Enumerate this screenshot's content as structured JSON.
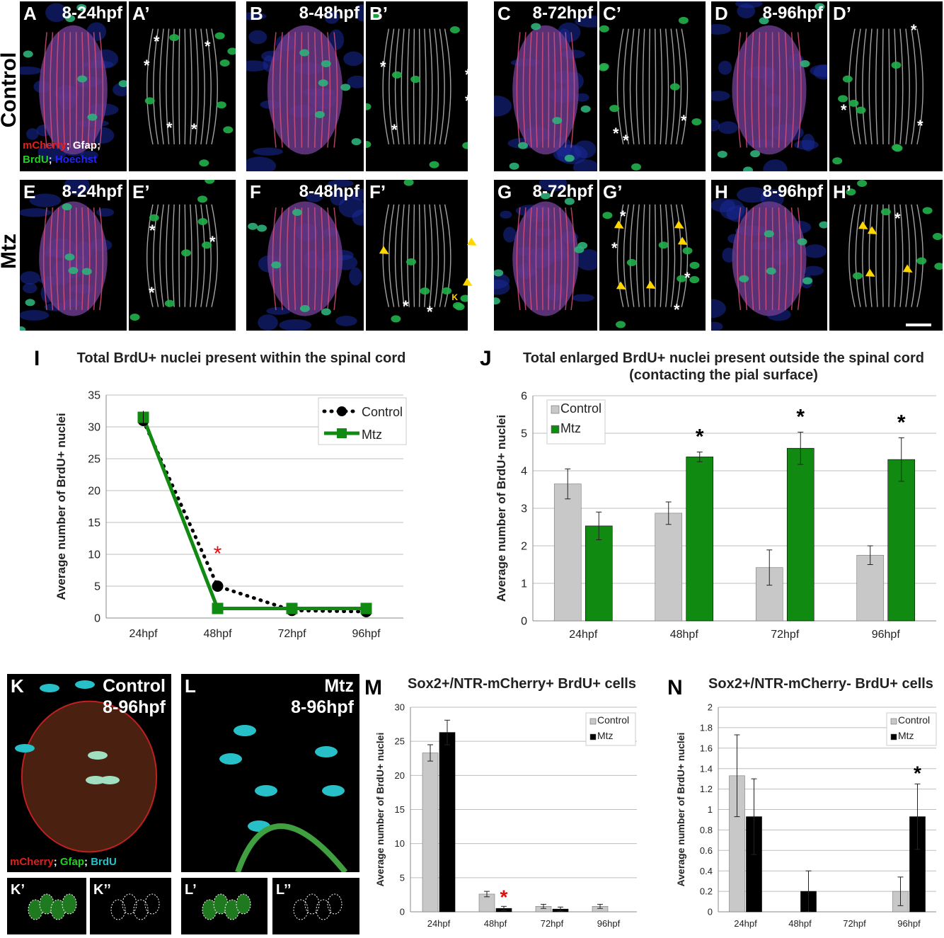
{
  "row_labels": {
    "control": "Control",
    "mtz": "Mtz"
  },
  "top_panels": [
    {
      "label": "A",
      "time": "8-24hpf"
    },
    {
      "label": "A’",
      "time": ""
    },
    {
      "label": "B",
      "time": "8-48hpf"
    },
    {
      "label": "B’",
      "time": ""
    },
    {
      "label": "C",
      "time": "8-72hpf"
    },
    {
      "label": "C’",
      "time": ""
    },
    {
      "label": "D",
      "time": "8-96hpf"
    },
    {
      "label": "D’",
      "time": ""
    }
  ],
  "mid_panels": [
    {
      "label": "E",
      "time": "8-24hpf"
    },
    {
      "label": "E’",
      "time": ""
    },
    {
      "label": "F",
      "time": "8-48hpf"
    },
    {
      "label": "F’",
      "time": "",
      "inset": "K"
    },
    {
      "label": "G",
      "time": "8-72hpf"
    },
    {
      "label": "G’",
      "time": ""
    },
    {
      "label": "H",
      "time": "8-96hpf"
    },
    {
      "label": "H’",
      "time": ""
    }
  ],
  "stain_legend_A": {
    "mcherry": "mCherry",
    "sep1": "; ",
    "gfap": "Gfap;",
    "brdu": "BrdU",
    "sep2": "; ",
    "hoechst": "Hoechst"
  },
  "stain_legend_K": {
    "mcherry": "mCherry",
    "sep1": "; ",
    "gfap": "Gfap",
    "sep2": "; ",
    "brdu": "BrdU"
  },
  "bottom_panels": {
    "K": {
      "label": "K",
      "title1": "Control",
      "title2": "8-96hpf"
    },
    "L": {
      "label": "L",
      "title1": "Mtz",
      "title2": "8-96hpf"
    },
    "K1": {
      "label": "K’"
    },
    "K2": {
      "label": "K’’"
    },
    "L1": {
      "label": "L’"
    },
    "L2": {
      "label": "L’’"
    }
  },
  "colors": {
    "control_gray": "#c8c8c8",
    "mtz_green": "#118a11",
    "black": "#000000",
    "sig_red": "#e01010"
  },
  "chart_data": [
    {
      "id": "I",
      "type": "line",
      "title": "Total BrdU+ nuclei present within the spinal cord",
      "ylabel": "Average number of BrdU+ nuclei",
      "categories": [
        "24hpf",
        "48hpf",
        "72hpf",
        "96hpf"
      ],
      "ylim": [
        0,
        35
      ],
      "yticks": [
        0,
        5,
        10,
        15,
        20,
        25,
        30,
        35
      ],
      "series": [
        {
          "name": "Control",
          "values": [
            31,
            5,
            1.2,
            1
          ],
          "errors": [
            1,
            0,
            0,
            0
          ]
        },
        {
          "name": "Mtz",
          "values": [
            31.5,
            1.5,
            1.5,
            1.5
          ],
          "errors": [
            1,
            0,
            0,
            0
          ]
        }
      ],
      "significance": [
        {
          "category": "48hpf",
          "mark": "*",
          "color": "#e01010"
        }
      ],
      "legend": "top-right",
      "grid": true
    },
    {
      "id": "J",
      "type": "bar",
      "title": "Total enlarged BrdU+ nuclei present outside the spinal cord",
      "subtitle": "(contacting the pial surface)",
      "ylabel": "Average number of BrdU+ nuclei",
      "categories": [
        "24hpf",
        "48hpf",
        "72hpf",
        "96hpf"
      ],
      "ylim": [
        0,
        6
      ],
      "yticks": [
        0,
        1,
        2,
        3,
        4,
        5,
        6
      ],
      "series": [
        {
          "name": "Control",
          "values": [
            3.65,
            2.87,
            1.42,
            1.75
          ],
          "errors": [
            0.4,
            0.3,
            0.47,
            0.25
          ]
        },
        {
          "name": "Mtz",
          "values": [
            2.53,
            4.37,
            4.6,
            4.3
          ],
          "errors": [
            0.37,
            0.13,
            0.43,
            0.58
          ]
        }
      ],
      "significance": [
        {
          "category": "48hpf",
          "mark": "*",
          "color": "#000000"
        },
        {
          "category": "72hpf",
          "mark": "*",
          "color": "#000000"
        },
        {
          "category": "96hpf",
          "mark": "*",
          "color": "#000000"
        }
      ],
      "legend": "top-left",
      "grid": true
    },
    {
      "id": "M",
      "type": "bar",
      "title": "Sox2+/NTR-mCherry+ BrdU+ cells",
      "ylabel": "Average number of BrdU+ nuclei",
      "categories": [
        "24hpf",
        "48hpf",
        "72hpf",
        "96hpf"
      ],
      "ylim": [
        0,
        30
      ],
      "yticks": [
        0,
        5,
        10,
        15,
        20,
        25,
        30
      ],
      "series": [
        {
          "name": "Control",
          "values": [
            23.3,
            2.6,
            0.8,
            0.8
          ],
          "errors": [
            1.2,
            0.4,
            0.3,
            0.3
          ]
        },
        {
          "name": "Mtz",
          "values": [
            26.3,
            0.5,
            0.4,
            0
          ],
          "errors": [
            1.8,
            0.3,
            0.3,
            0
          ]
        }
      ],
      "significance": [
        {
          "category": "48hpf",
          "mark": "*",
          "color": "#e01010"
        }
      ],
      "legend": "top-right",
      "grid": true
    },
    {
      "id": "N",
      "type": "bar",
      "title": "Sox2+/NTR-mCherry- BrdU+ cells",
      "ylabel": "Average number of BrdU+ nuclei",
      "categories": [
        "24hpf",
        "48hpf",
        "72hpf",
        "96hpf"
      ],
      "ylim": [
        0,
        2
      ],
      "yticks": [
        0,
        0.2,
        0.4,
        0.6,
        0.8,
        1,
        1.2,
        1.4,
        1.6,
        1.8,
        2
      ],
      "series": [
        {
          "name": "Control",
          "values": [
            1.33,
            0,
            0,
            0.2
          ],
          "errors": [
            0.4,
            0,
            0,
            0.14
          ]
        },
        {
          "name": "Mtz",
          "values": [
            0.93,
            0.2,
            0,
            0.93
          ],
          "errors": [
            0.37,
            0.2,
            0,
            0.32
          ]
        }
      ],
      "significance": [
        {
          "category": "96hpf",
          "mark": "*",
          "color": "#000000"
        }
      ],
      "legend": "top-right",
      "grid": true
    }
  ]
}
